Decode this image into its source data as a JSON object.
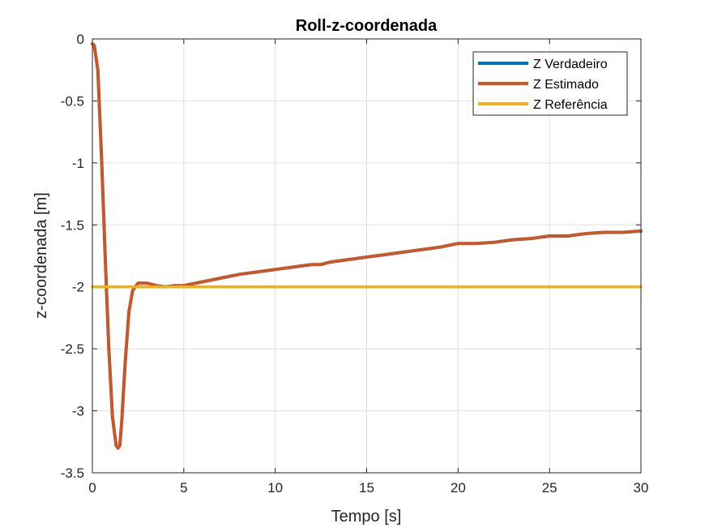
{
  "chart_data": {
    "type": "line",
    "title": "Roll-z-coordenada",
    "xlabel": "Tempo [s]",
    "ylabel": "z-coordenada [m]",
    "xlim": [
      0,
      30
    ],
    "ylim": [
      -3.5,
      0
    ],
    "xticks": [
      0,
      5,
      10,
      15,
      20,
      25,
      30
    ],
    "yticks": [
      0,
      -0.5,
      -1,
      -1.5,
      -2,
      -2.5,
      -3,
      -3.5
    ],
    "xtick_labels": [
      "0",
      "5",
      "10",
      "15",
      "20",
      "25",
      "30"
    ],
    "ytick_labels": [
      "0",
      "-0.5",
      "-1",
      "-1.5",
      "-2",
      "-2.5",
      "-3",
      "-3.5"
    ],
    "grid": true,
    "legend_position": "top-right",
    "series": [
      {
        "name": "Z Verdadeiro",
        "color": "#0072BD",
        "x": [
          0,
          0.1,
          0.3,
          0.5,
          0.7,
          0.9,
          1.1,
          1.3,
          1.4,
          1.5,
          1.6,
          1.8,
          2.0,
          2.2,
          2.5,
          2.8,
          3.0,
          3.5,
          4.0,
          4.5,
          5.0,
          6.0,
          7.0,
          8.0,
          9.0,
          10.0,
          11.0,
          12.0,
          12.5,
          13.0,
          14.0,
          15.0,
          16.0,
          17.0,
          18.0,
          19.0,
          20.0,
          21.0,
          22.0,
          23.0,
          24.0,
          25.0,
          26.0,
          27.0,
          28.0,
          29.0,
          30.0
        ],
        "values": [
          -0.04,
          -0.05,
          -0.25,
          -0.95,
          -1.75,
          -2.5,
          -3.05,
          -3.28,
          -3.3,
          -3.28,
          -3.1,
          -2.6,
          -2.2,
          -2.03,
          -1.97,
          -1.97,
          -1.97,
          -1.99,
          -2.0,
          -1.99,
          -1.99,
          -1.96,
          -1.93,
          -1.9,
          -1.88,
          -1.86,
          -1.84,
          -1.82,
          -1.82,
          -1.8,
          -1.78,
          -1.76,
          -1.74,
          -1.72,
          -1.7,
          -1.68,
          -1.65,
          -1.65,
          -1.64,
          -1.62,
          -1.61,
          -1.59,
          -1.59,
          -1.57,
          -1.56,
          -1.56,
          -1.55
        ]
      },
      {
        "name": "Z Estimado",
        "color": "#D95319",
        "x": [
          0,
          0.1,
          0.3,
          0.5,
          0.7,
          0.9,
          1.1,
          1.3,
          1.4,
          1.5,
          1.6,
          1.8,
          2.0,
          2.2,
          2.5,
          2.8,
          3.0,
          3.5,
          4.0,
          4.5,
          5.0,
          6.0,
          7.0,
          8.0,
          9.0,
          10.0,
          11.0,
          12.0,
          12.5,
          13.0,
          14.0,
          15.0,
          16.0,
          17.0,
          18.0,
          19.0,
          20.0,
          21.0,
          22.0,
          23.0,
          24.0,
          25.0,
          26.0,
          27.0,
          28.0,
          29.0,
          30.0
        ],
        "values": [
          -0.04,
          -0.05,
          -0.25,
          -0.95,
          -1.75,
          -2.5,
          -3.05,
          -3.28,
          -3.3,
          -3.28,
          -3.1,
          -2.6,
          -2.2,
          -2.03,
          -1.97,
          -1.97,
          -1.97,
          -1.99,
          -2.0,
          -1.99,
          -1.99,
          -1.96,
          -1.93,
          -1.9,
          -1.88,
          -1.86,
          -1.84,
          -1.82,
          -1.82,
          -1.8,
          -1.78,
          -1.76,
          -1.74,
          -1.72,
          -1.7,
          -1.68,
          -1.65,
          -1.65,
          -1.64,
          -1.62,
          -1.61,
          -1.59,
          -1.59,
          -1.57,
          -1.56,
          -1.56,
          -1.55
        ]
      },
      {
        "name": "Z Referência",
        "color": "#EDB120",
        "x": [
          0,
          30
        ],
        "values": [
          -2,
          -2
        ]
      }
    ]
  }
}
